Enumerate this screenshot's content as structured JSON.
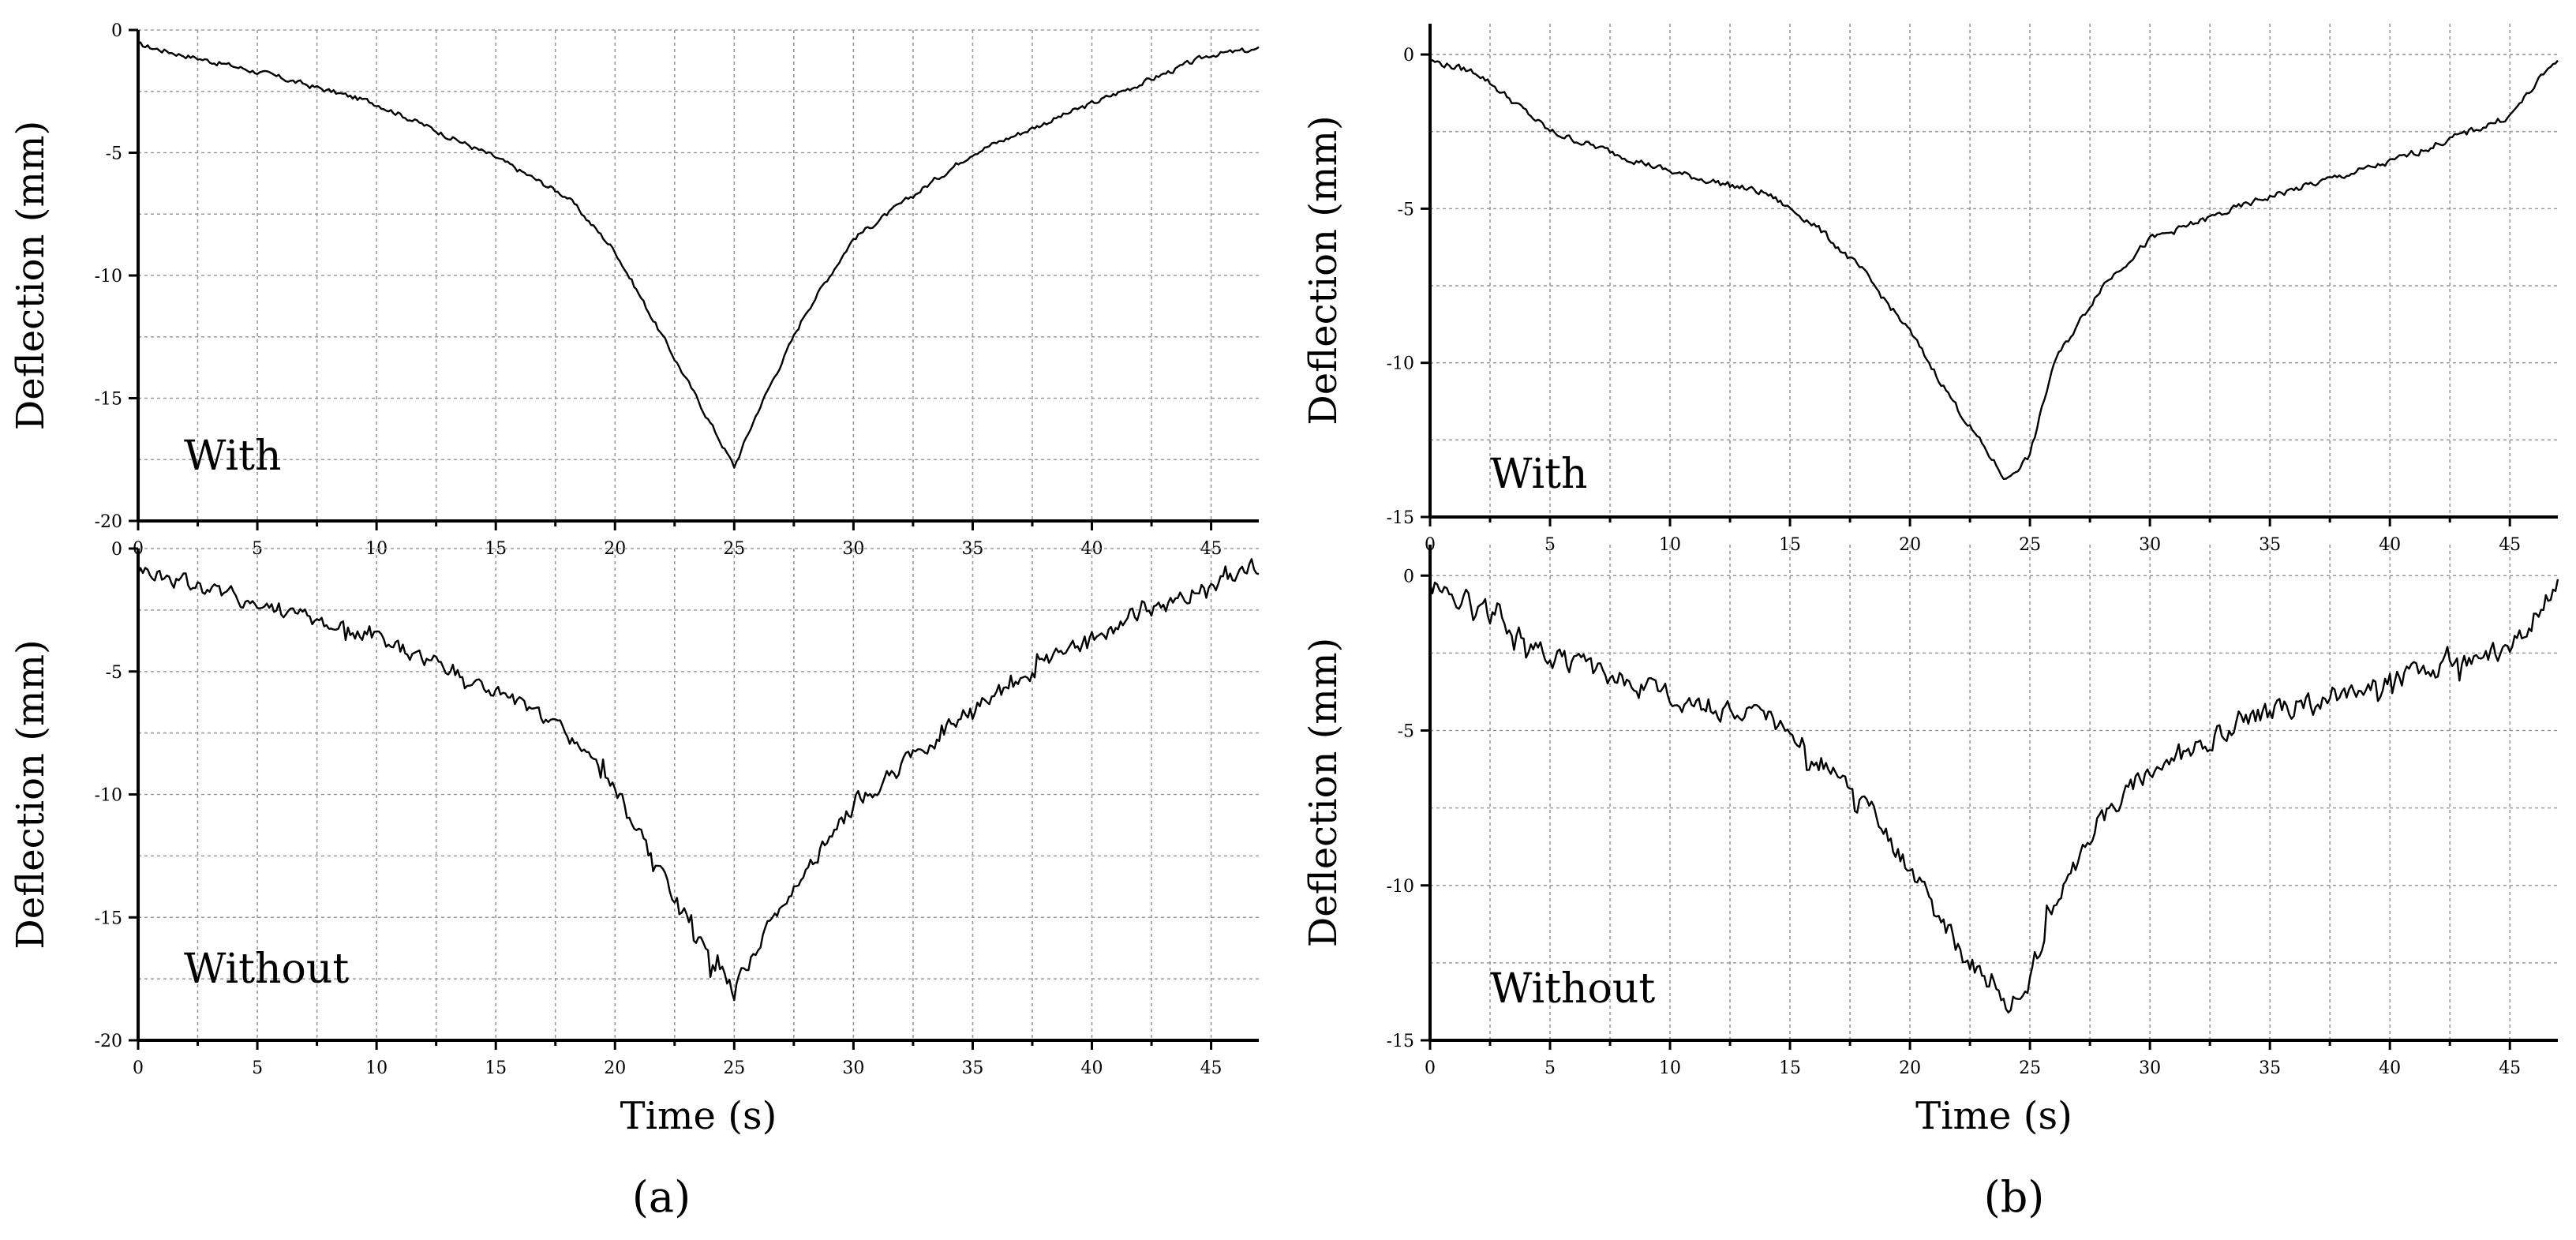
{
  "chart_data": [
    {
      "panel": "a",
      "position": "top",
      "type": "line",
      "xlabel": "",
      "ylabel": "Deflection (mm)",
      "xlim": [
        0,
        47
      ],
      "ylim": [
        -20,
        0
      ],
      "xticks": [
        0,
        5,
        10,
        15,
        20,
        25,
        30,
        35,
        40,
        45
      ],
      "yticks": [
        0,
        -5,
        -10,
        -15,
        -20
      ],
      "annotation": "With",
      "grid": true,
      "series": [
        {
          "name": "With",
          "x": [
            0,
            5,
            10,
            15,
            18,
            20,
            22,
            24,
            25,
            26,
            28,
            30,
            35,
            40,
            45,
            47
          ],
          "y": [
            -0.6,
            -1.7,
            -3.0,
            -5.2,
            -6.8,
            -9.0,
            -12.5,
            -16.0,
            -17.8,
            -15.5,
            -11.5,
            -8.5,
            -5.0,
            -3.0,
            -1.0,
            -0.8
          ]
        }
      ]
    },
    {
      "panel": "a",
      "position": "bottom",
      "type": "line",
      "xlabel": "Time (s)",
      "ylabel": "Deflection (mm)",
      "xlim": [
        0,
        47
      ],
      "ylim": [
        -20,
        0
      ],
      "xticks": [
        0,
        5,
        10,
        15,
        20,
        25,
        30,
        35,
        40,
        45
      ],
      "yticks": [
        0,
        -5,
        -10,
        -15,
        -20
      ],
      "annotation": "Without",
      "grid": true,
      "series": [
        {
          "name": "Without",
          "x": [
            0,
            5,
            10,
            15,
            18,
            20,
            22,
            24,
            25,
            26,
            28,
            30,
            35,
            40,
            45,
            47
          ],
          "y": [
            -0.8,
            -2.2,
            -3.6,
            -5.8,
            -7.5,
            -9.8,
            -13.5,
            -16.5,
            -18.0,
            -16.0,
            -13.0,
            -10.5,
            -6.5,
            -3.6,
            -1.5,
            -0.6
          ]
        }
      ]
    },
    {
      "panel": "b",
      "position": "top",
      "type": "line",
      "xlabel": "",
      "ylabel": "Deflection (mm)",
      "xlim": [
        0,
        47
      ],
      "ylim": [
        -15,
        1
      ],
      "xticks": [
        0,
        5,
        10,
        15,
        20,
        25,
        30,
        35,
        40,
        45
      ],
      "yticks": [
        0,
        -5,
        -10,
        -15
      ],
      "annotation": "With",
      "grid": true,
      "series": [
        {
          "name": "With",
          "x": [
            0,
            2,
            5,
            10,
            14,
            16,
            18,
            20,
            22,
            24,
            25,
            26,
            28,
            30,
            35,
            40,
            45,
            47
          ],
          "y": [
            -0.2,
            -0.6,
            -2.5,
            -3.8,
            -4.5,
            -5.5,
            -7.0,
            -9.0,
            -11.5,
            -13.8,
            -13.0,
            -10.0,
            -7.5,
            -6.0,
            -4.6,
            -3.5,
            -2.0,
            -0.1
          ]
        }
      ]
    },
    {
      "panel": "b",
      "position": "bottom",
      "type": "line",
      "xlabel": "Time (s)",
      "ylabel": "Deflection (mm)",
      "xlim": [
        0,
        47
      ],
      "ylim": [
        -15,
        1
      ],
      "xticks": [
        0,
        5,
        10,
        15,
        20,
        25,
        30,
        35,
        40,
        45
      ],
      "yticks": [
        0,
        -5,
        -10,
        -15
      ],
      "annotation": "Without",
      "grid": true,
      "series": [
        {
          "name": "Without",
          "x": [
            0,
            2,
            5,
            10,
            14,
            16,
            18,
            20,
            22,
            24,
            25,
            26,
            28,
            30,
            35,
            40,
            45,
            47
          ],
          "y": [
            -0.3,
            -0.9,
            -2.6,
            -3.9,
            -4.6,
            -5.8,
            -7.4,
            -9.5,
            -12.0,
            -14.0,
            -13.0,
            -10.5,
            -7.8,
            -6.2,
            -4.4,
            -3.4,
            -2.3,
            -0.3
          ]
        }
      ]
    }
  ],
  "captions": {
    "a": "(a)",
    "b": "(b)"
  }
}
